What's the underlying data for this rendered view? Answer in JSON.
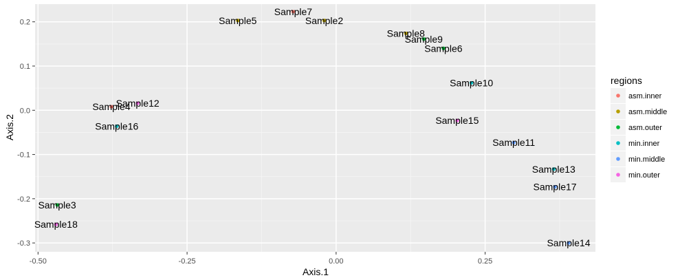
{
  "chart_data": {
    "type": "scatter",
    "xlabel": "Axis.1",
    "ylabel": "Axis.2",
    "xlim": [
      -0.505,
      0.435
    ],
    "ylim": [
      -0.32,
      0.24
    ],
    "xticks": [
      -0.5,
      -0.25,
      0.0,
      0.25
    ],
    "xtick_labels": [
      "-0.50",
      "-0.25",
      "0.00",
      "0.25"
    ],
    "yticks": [
      0.2,
      0.1,
      0.0,
      -0.1,
      -0.2,
      -0.3
    ],
    "ytick_labels": [
      "0.2",
      "0.1",
      "0.0",
      "-0.1",
      "-0.2",
      "-0.3"
    ],
    "grid": true,
    "legend_title": "regions",
    "legend_position": "right",
    "groups": [
      {
        "name": "asm.inner",
        "color": "#F8766D"
      },
      {
        "name": "asm.middle",
        "color": "#B79F00"
      },
      {
        "name": "asm.outer",
        "color": "#00BA38"
      },
      {
        "name": "min.inner",
        "color": "#00BFC4"
      },
      {
        "name": "min.middle",
        "color": "#619CFF"
      },
      {
        "name": "min.outer",
        "color": "#F564E3"
      }
    ],
    "points": [
      {
        "label": "Sample7",
        "x": -0.072,
        "y": 0.223,
        "group": "asm.inner"
      },
      {
        "label": "Sample5",
        "x": -0.165,
        "y": 0.203,
        "group": "asm.middle"
      },
      {
        "label": "Sample2",
        "x": -0.02,
        "y": 0.203,
        "group": "asm.middle"
      },
      {
        "label": "Sample8",
        "x": 0.117,
        "y": 0.174,
        "group": "asm.middle"
      },
      {
        "label": "Sample9",
        "x": 0.147,
        "y": 0.161,
        "group": "asm.outer"
      },
      {
        "label": "Sample6",
        "x": 0.18,
        "y": 0.14,
        "group": "asm.outer"
      },
      {
        "label": "Sample10",
        "x": 0.227,
        "y": 0.062,
        "group": "min.inner"
      },
      {
        "label": "Sample4",
        "x": -0.377,
        "y": 0.008,
        "group": "asm.inner"
      },
      {
        "label": "Sample12",
        "x": -0.333,
        "y": 0.016,
        "group": "min.outer"
      },
      {
        "label": "Sample16",
        "x": -0.368,
        "y": -0.036,
        "group": "min.inner"
      },
      {
        "label": "Sample15",
        "x": 0.203,
        "y": -0.023,
        "group": "min.outer"
      },
      {
        "label": "Sample11",
        "x": 0.298,
        "y": -0.073,
        "group": "min.middle"
      },
      {
        "label": "Sample13",
        "x": 0.365,
        "y": -0.133,
        "group": "min.inner"
      },
      {
        "label": "Sample17",
        "x": 0.367,
        "y": -0.173,
        "group": "min.middle"
      },
      {
        "label": "Sample3",
        "x": -0.468,
        "y": -0.214,
        "group": "asm.outer"
      },
      {
        "label": "Sample18",
        "x": -0.47,
        "y": -0.258,
        "group": "min.outer"
      },
      {
        "label": "Sample14",
        "x": 0.39,
        "y": -0.3,
        "group": "min.middle"
      }
    ]
  }
}
